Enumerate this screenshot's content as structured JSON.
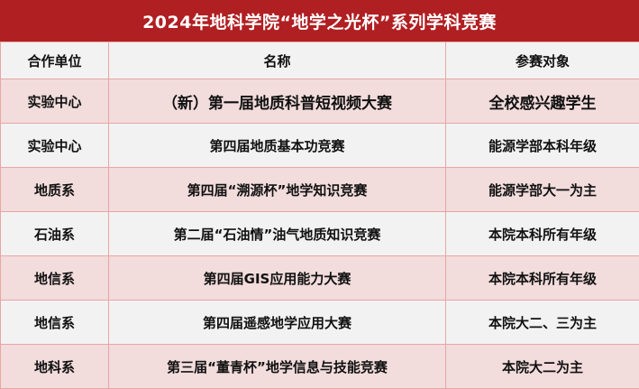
{
  "title": "2024年地科学院“地学之光杯”系列学科竞赛",
  "headers": [
    "合作单位",
    "名称",
    "参赛对象"
  ],
  "rows": [
    {
      "unit": "实验中心",
      "name": "（新）第一届地质科普短视频大赛",
      "target": "全校感兴趣学生"
    },
    {
      "unit": "实验中心",
      "name": "第四届地质基本功竞赛",
      "target": "能源学部本科年级"
    },
    {
      "unit": "地质系",
      "name": "第四届“溯源杯”地学知识竞赛",
      "target": "能源学部大一为主"
    },
    {
      "unit": "石油系",
      "name": "第二届“石油情”油气地质知识竞赛",
      "target": "本院本科所有年级"
    },
    {
      "unit": "地信系",
      "name": "第四届GIS应用能力大赛",
      "target": "本院本科所有年级"
    },
    {
      "unit": "地信系",
      "name": "第四届遥感地学应用大赛",
      "target": "本院大二、三为主"
    },
    {
      "unit": "地科系",
      "name": "第三届“董青杯”地学信息与技能竞赛",
      "target": "本院大二为主"
    }
  ],
  "colors": {
    "title_bg": "#b01f22",
    "row_pink": "#f2dcdc",
    "row_gray": "#f2f2f2",
    "border": "#e8a5a5"
  }
}
